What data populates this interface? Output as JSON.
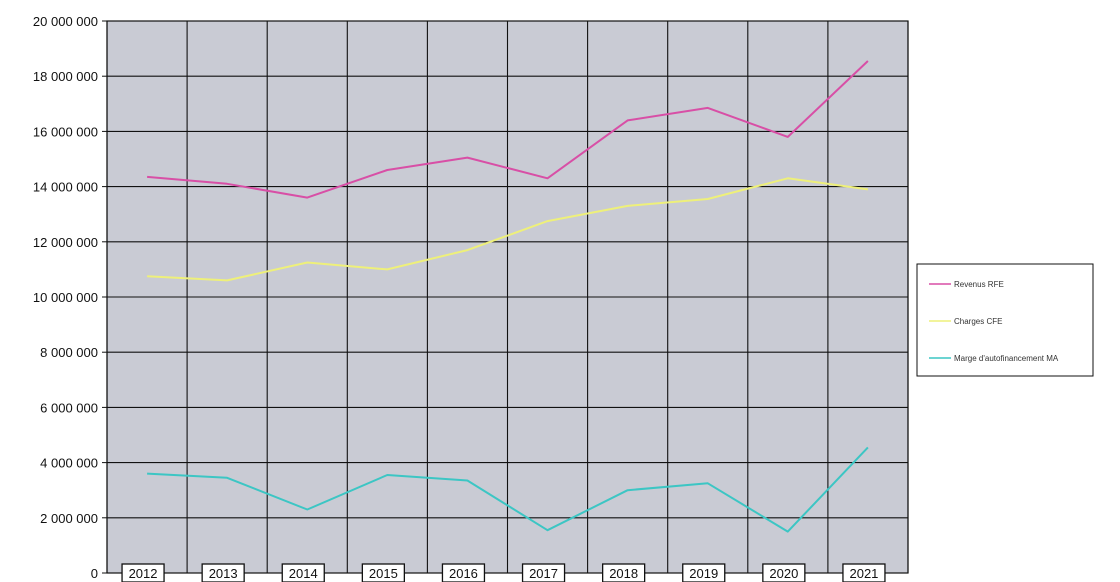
{
  "chart_data": {
    "type": "line",
    "title": "",
    "xlabel": "",
    "ylabel": "",
    "categories": [
      "2012",
      "2013",
      "2014",
      "2015",
      "2016",
      "2017",
      "2018",
      "2019",
      "2020",
      "2021"
    ],
    "ylim": [
      0,
      20000000
    ],
    "y_ticks": [
      "0",
      "2 000 000",
      "4 000 000",
      "6 000 000",
      "8 000 000",
      "10 000 000",
      "12 000 000",
      "14 000 000",
      "16 000 000",
      "18 000 000",
      "20 000 000"
    ],
    "grid": true,
    "legend_position": "right",
    "series": [
      {
        "name": "Revenus  RFE",
        "color": "#d84fa6",
        "values": [
          14350000,
          14100000,
          13600000,
          14600000,
          15050000,
          14300000,
          16400000,
          16850000,
          15800000,
          18550000
        ]
      },
      {
        "name": "Charges  CFE",
        "color": "#eef07a",
        "values": [
          10750000,
          10600000,
          11250000,
          11000000,
          11700000,
          12750000,
          13300000,
          13550000,
          14300000,
          13900000
        ]
      },
      {
        "name": "Marge d'autofinancement MA",
        "color": "#3cc6c4",
        "values": [
          3600000,
          3450000,
          2300000,
          3550000,
          3350000,
          1550000,
          3000000,
          3250000,
          1500000,
          4550000
        ]
      }
    ]
  },
  "colors": {
    "plot_background": "#c9cbd4",
    "grid": "#111111"
  }
}
